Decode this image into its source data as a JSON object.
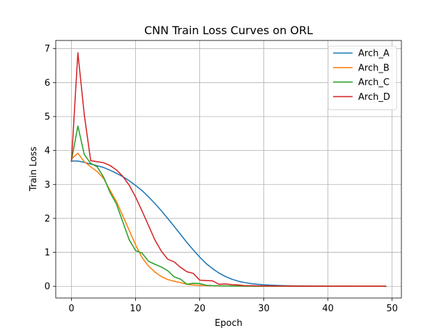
{
  "chart_data": {
    "type": "line",
    "title": "CNN Train Loss Curves on ORL",
    "xlabel": "Epoch",
    "ylabel": "Train Loss",
    "xlim": [
      -2.45,
      51.45
    ],
    "ylim": [
      -0.345,
      7.24
    ],
    "xticks": [
      0,
      10,
      20,
      30,
      40,
      50
    ],
    "yticks": [
      0,
      1,
      2,
      3,
      4,
      5,
      6,
      7
    ],
    "grid": true,
    "legend": "top-right",
    "series": [
      {
        "name": "Arch_A",
        "color": "#1f77b4",
        "x": [
          0,
          1,
          2,
          3,
          4,
          5,
          6,
          7,
          8,
          9,
          10,
          11,
          12,
          13,
          14,
          15,
          16,
          17,
          18,
          19,
          20,
          21,
          22,
          23,
          24,
          25,
          26,
          27,
          28,
          29,
          30,
          31,
          32,
          33,
          34,
          35,
          36,
          37,
          38,
          39,
          40,
          41,
          42,
          43,
          44,
          45,
          46,
          47,
          48,
          49
        ],
        "values": [
          3.69,
          3.69,
          3.65,
          3.6,
          3.55,
          3.5,
          3.42,
          3.33,
          3.23,
          3.11,
          2.97,
          2.82,
          2.64,
          2.44,
          2.23,
          2.0,
          1.77,
          1.53,
          1.29,
          1.07,
          0.86,
          0.67,
          0.52,
          0.39,
          0.29,
          0.21,
          0.15,
          0.11,
          0.08,
          0.06,
          0.045,
          0.035,
          0.027,
          0.02,
          0.015,
          0.012,
          0.01,
          0.008,
          0.006,
          0.005,
          0.004,
          0.004,
          0.003,
          0.003,
          0.002,
          0.002,
          0.002,
          0.002,
          0.002,
          0.002
        ]
      },
      {
        "name": "Arch_B",
        "color": "#ff7f0e",
        "x": [
          0,
          1,
          2,
          3,
          4,
          5,
          6,
          7,
          8,
          9,
          10,
          11,
          12,
          13,
          14,
          15,
          16,
          17,
          18,
          19,
          20,
          21,
          22,
          23,
          24,
          25,
          26,
          27,
          28,
          29,
          30,
          31,
          32,
          33,
          34,
          35,
          36,
          37,
          38,
          39,
          40,
          41,
          42,
          43,
          44,
          45,
          46,
          47,
          48,
          49
        ],
        "values": [
          3.75,
          3.92,
          3.67,
          3.52,
          3.38,
          3.18,
          2.83,
          2.5,
          2.08,
          1.65,
          1.22,
          0.85,
          0.6,
          0.42,
          0.29,
          0.2,
          0.15,
          0.11,
          0.06,
          0.04,
          0.03,
          0.02,
          0.015,
          0.012,
          0.01,
          0.008,
          0.006,
          0.005,
          0.004,
          0.004,
          0.003,
          0.003,
          0.003,
          0.002,
          0.002,
          0.002,
          0.002,
          0.002,
          0.002,
          0.002,
          0.002,
          0.002,
          0.002,
          0.002,
          0.002,
          0.002,
          0.002,
          0.002,
          0.002,
          0.002
        ]
      },
      {
        "name": "Arch_C",
        "color": "#2ca02c",
        "x": [
          0,
          1,
          2,
          3,
          4,
          5,
          6,
          7,
          8,
          9,
          10,
          11,
          12,
          13,
          14,
          15,
          16,
          17,
          18,
          19,
          20,
          21,
          22,
          23,
          24,
          25,
          26,
          27,
          28,
          29,
          30,
          31,
          32,
          33,
          34,
          35,
          36,
          37,
          38,
          39,
          40,
          41,
          42,
          43,
          44,
          45,
          46,
          47,
          48,
          49
        ],
        "values": [
          3.7,
          4.72,
          3.88,
          3.62,
          3.52,
          3.22,
          2.77,
          2.43,
          1.9,
          1.37,
          1.05,
          0.98,
          0.74,
          0.65,
          0.57,
          0.46,
          0.28,
          0.21,
          0.06,
          0.09,
          0.08,
          0.03,
          0.02,
          0.015,
          0.01,
          0.01,
          0.008,
          0.006,
          0.005,
          0.004,
          0.004,
          0.003,
          0.003,
          0.003,
          0.002,
          0.002,
          0.002,
          0.002,
          0.002,
          0.002,
          0.002,
          0.002,
          0.002,
          0.002,
          0.002,
          0.002,
          0.002,
          0.002,
          0.002,
          0.002
        ]
      },
      {
        "name": "Arch_D",
        "color": "#d62728",
        "x": [
          0,
          1,
          2,
          3,
          4,
          5,
          6,
          7,
          8,
          9,
          10,
          11,
          12,
          13,
          14,
          15,
          16,
          17,
          18,
          19,
          20,
          21,
          22,
          23,
          24,
          25,
          26,
          27,
          28,
          29,
          30,
          31,
          32,
          33,
          34,
          35,
          36,
          37,
          38,
          39,
          40,
          41,
          42,
          43,
          44,
          45,
          46,
          47,
          48,
          49
        ],
        "values": [
          3.68,
          6.88,
          5.05,
          3.7,
          3.67,
          3.64,
          3.56,
          3.43,
          3.24,
          2.98,
          2.63,
          2.22,
          1.8,
          1.37,
          1.04,
          0.8,
          0.72,
          0.56,
          0.43,
          0.38,
          0.18,
          0.17,
          0.16,
          0.06,
          0.07,
          0.05,
          0.04,
          0.02,
          0.02,
          0.015,
          0.01,
          0.01,
          0.008,
          0.007,
          0.006,
          0.005,
          0.004,
          0.004,
          0.003,
          0.003,
          0.003,
          0.003,
          0.003,
          0.003,
          0.003,
          0.003,
          0.003,
          0.003,
          0.003,
          0.003
        ]
      }
    ]
  }
}
